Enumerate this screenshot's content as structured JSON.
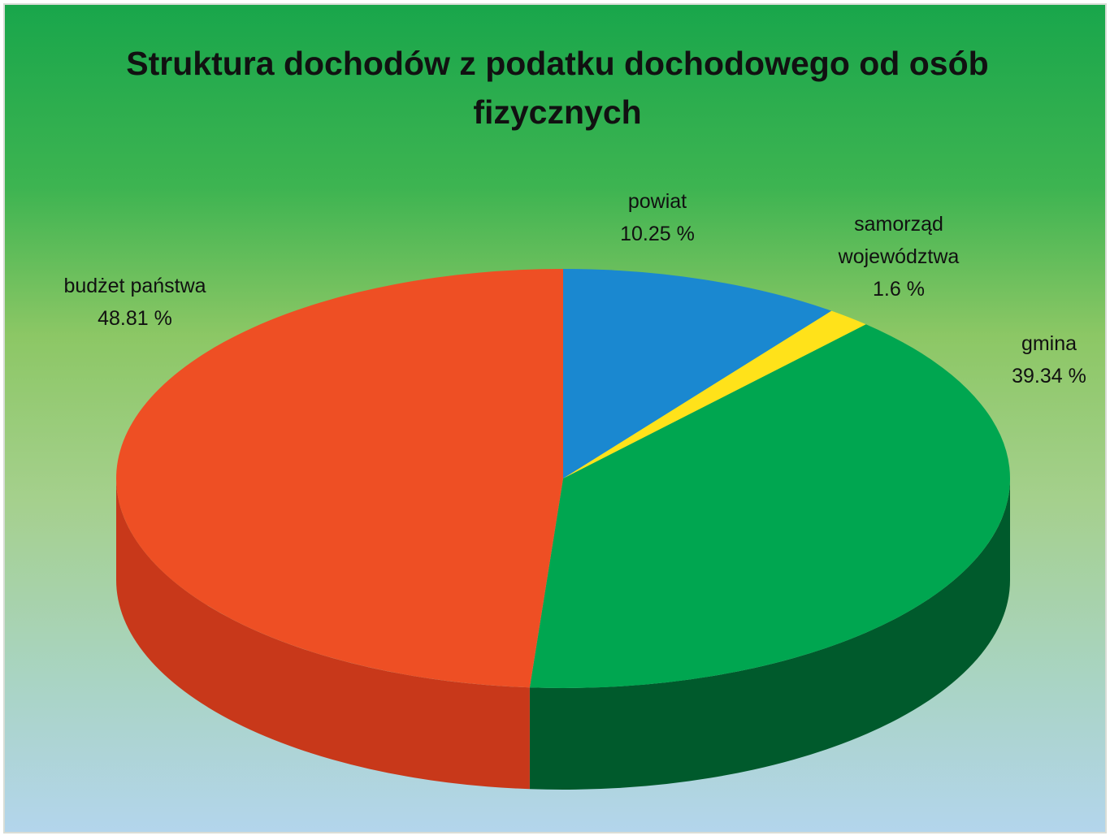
{
  "chart_data": {
    "type": "pie",
    "title": "Struktura dochodów z podatku dochodowego od osób fizycznych",
    "categories": [
      "powiat",
      "samorząd województwa",
      "gmina",
      "budżet państwa"
    ],
    "values": [
      10.25,
      1.6,
      39.34,
      48.81
    ],
    "value_labels": [
      "10.25 %",
      "1.6 %",
      "39.34 %",
      "48.81 %"
    ],
    "colors": [
      "#1a88d0",
      "#ffe21a",
      "#00a650",
      "#ee4f24"
    ],
    "side_colors": [
      "#0f5f95",
      "#c9b000",
      "#005a2c",
      "#c8381a"
    ]
  }
}
